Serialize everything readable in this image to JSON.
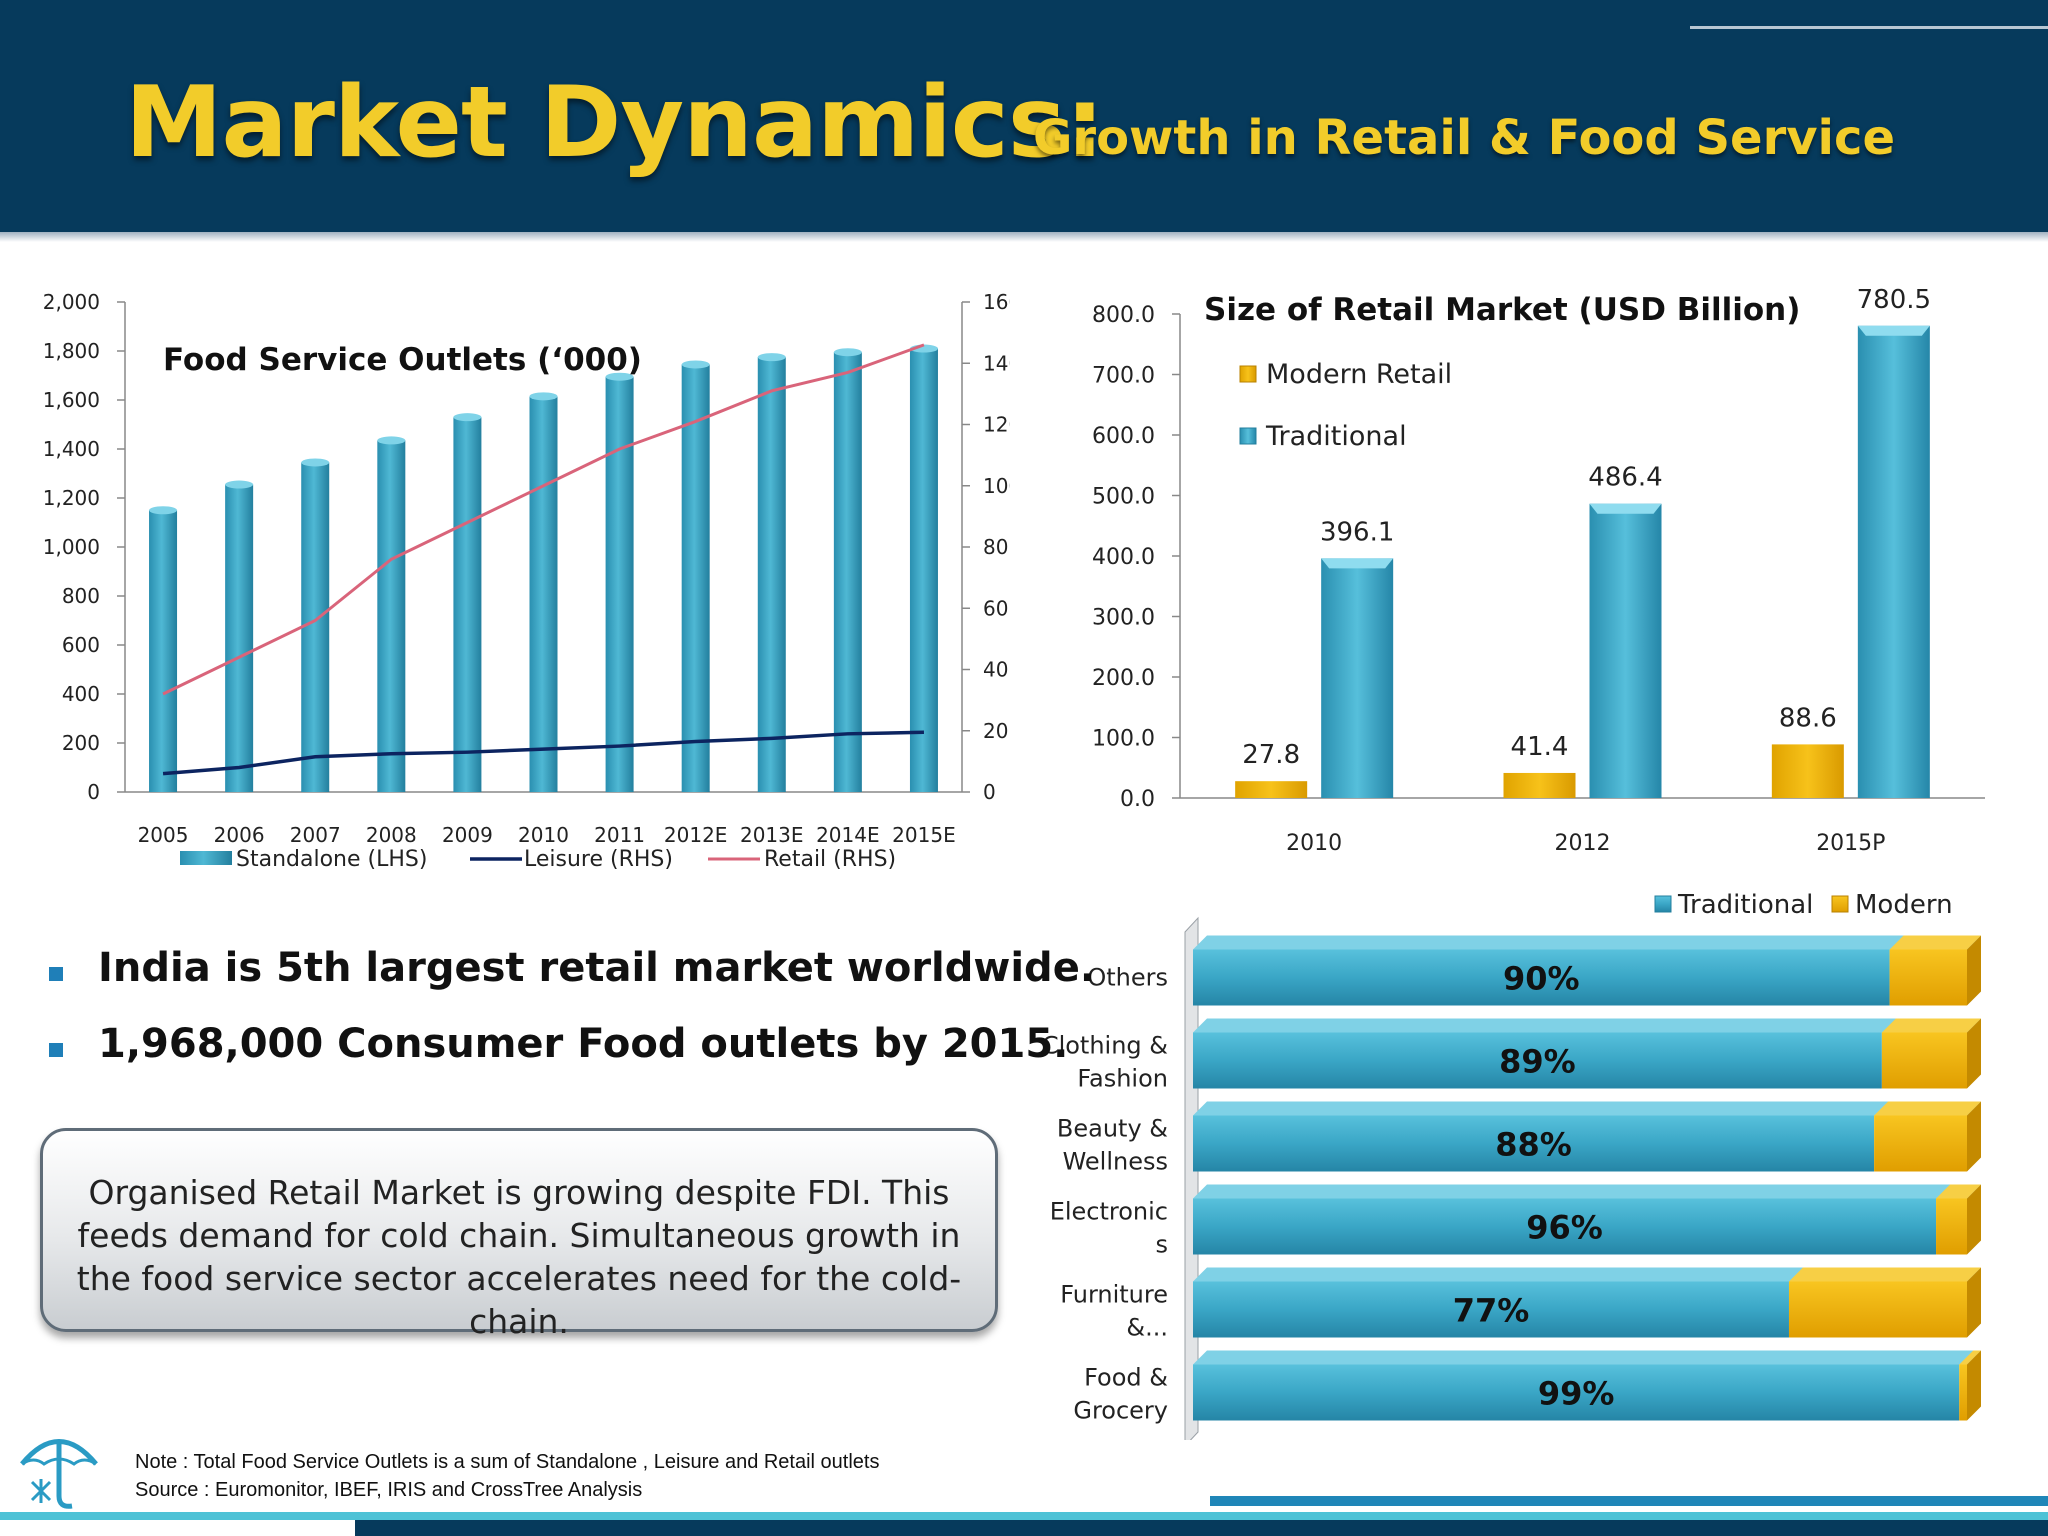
{
  "header": {
    "title_main": "Market Dynamics:",
    "title_sub": "Growth in Retail & Food Service"
  },
  "colors": {
    "header_bg": "#063a5c",
    "title_yellow": "#f2cc2a",
    "traditional_teal": "#3aa6c6",
    "modern_gold": "#f0b400",
    "leisure_navy": "#0c2460",
    "retail_pink": "#d9647a"
  },
  "chart_data": [
    {
      "type": "bar",
      "title": "Food Service Outlets (‘000)",
      "categories": [
        "2005",
        "2006",
        "2007",
        "2008",
        "2009",
        "2010",
        "2011",
        "2012E",
        "2013E",
        "2014E",
        "2015E"
      ],
      "left_axis": {
        "ylim": [
          0,
          2000
        ],
        "ticks": [
          "0",
          "200",
          "400",
          "600",
          "800",
          "1,000",
          "1,200",
          "1,400",
          "1,600",
          "1,800",
          "2,000"
        ]
      },
      "right_axis": {
        "ylim": [
          0,
          160
        ],
        "ticks": [
          "0",
          "20",
          "40",
          "60",
          "80",
          "100",
          "120",
          "140",
          "160"
        ]
      },
      "series": [
        {
          "name": "Standalone  (LHS)",
          "type": "bar",
          "axis": "left",
          "values": [
            1150,
            1255,
            1345,
            1435,
            1530,
            1615,
            1695,
            1745,
            1775,
            1795,
            1810
          ]
        },
        {
          "name": "Leisure (RHS)",
          "type": "line",
          "axis": "right",
          "values": [
            6,
            8,
            11.5,
            12.5,
            13,
            14,
            15,
            16.5,
            17.5,
            19,
            19.5
          ]
        },
        {
          "name": "Retail (RHS)",
          "type": "line",
          "axis": "right",
          "values": [
            32,
            44,
            56,
            76,
            88,
            100,
            112,
            121,
            131,
            137,
            146
          ]
        }
      ],
      "legend": "bottom"
    },
    {
      "type": "bar",
      "title": "Size of Retail Market (USD Billion)",
      "categories": [
        "2010",
        "2012",
        "2015P"
      ],
      "ylim": [
        0,
        800
      ],
      "ticks": [
        "0.0",
        "100.0",
        "200.0",
        "300.0",
        "400.0",
        "500.0",
        "600.0",
        "700.0",
        "800.0"
      ],
      "series": [
        {
          "name": "Modern Retail",
          "values": [
            27.8,
            41.4,
            88.6
          ],
          "labels": [
            "27.8",
            "41.4",
            "88.6"
          ]
        },
        {
          "name": "Traditional",
          "values": [
            396.1,
            486.4,
            780.5
          ],
          "labels": [
            "396.1",
            "486.4",
            "780.5"
          ]
        }
      ],
      "legend": "top-left"
    },
    {
      "type": "bar",
      "orientation": "horizontal-stacked-100",
      "categories": [
        [
          "Others"
        ],
        [
          "Clothing &",
          "Fashion"
        ],
        [
          "Beauty &",
          "Wellness"
        ],
        [
          "Electronic",
          "s"
        ],
        [
          "Furniture",
          "&..."
        ],
        [
          "Food &",
          "Grocery"
        ]
      ],
      "series": [
        {
          "name": "Traditional",
          "values": [
            90,
            89,
            88,
            96,
            77,
            99
          ]
        },
        {
          "name": "Modern",
          "values": [
            10,
            11,
            12,
            4,
            23,
            1
          ]
        }
      ],
      "labels": [
        "90%",
        "89%",
        "88%",
        "96%",
        "77%",
        "99%"
      ],
      "legend": "top-right"
    }
  ],
  "bullets": [
    "India is 5th largest retail market worldwide.",
    "1,968,000 Consumer Food outlets by 2015."
  ],
  "callout": "Organised Retail Market is growing despite FDI. This feeds demand for cold chain. Simultaneous growth in the food service sector accelerates need for the cold-chain.",
  "note": {
    "line1": "Note : Total Food Service Outlets is a sum of Standalone , Leisure and Retail outlets",
    "line2": "Source : Euromonitor, IBEF, IRIS and CrossTree Analysis"
  }
}
